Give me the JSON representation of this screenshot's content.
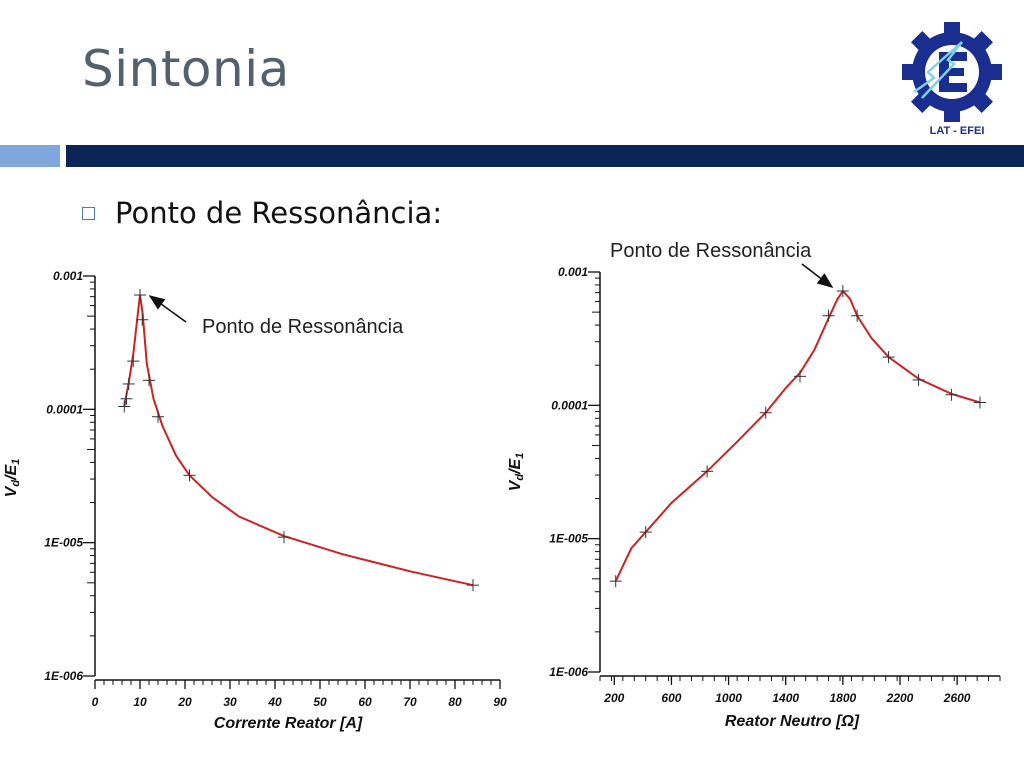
{
  "slide": {
    "title": "Sintonia",
    "bullet": "Ponto de Ressonância:",
    "logo_text": "LAT - EFEI",
    "colors": {
      "title": "#53606e",
      "bar_light": "#7fa6dd",
      "bar_dark": "#0a2556",
      "logo_blue": "#1a2e8f",
      "curve": "#cc2222"
    }
  },
  "chart_data": [
    {
      "type": "line",
      "xlabel": "Corrente Reator [A]",
      "ylabel": "Vd/E1",
      "ylabel_main": "V",
      "ylabel_sub1": "d",
      "ylabel_mid": "/E",
      "ylabel_sub2": "1",
      "yscale": "log",
      "xlim": [
        0,
        90
      ],
      "ylim": [
        1e-06,
        0.001
      ],
      "x_ticks": [
        0,
        10,
        20,
        30,
        40,
        50,
        60,
        70,
        80,
        90
      ],
      "x_tick_labels": [
        "0",
        "10",
        "20",
        "30",
        "40",
        "50",
        "60",
        "70",
        "80",
        "90"
      ],
      "y_ticks": [
        0.001,
        0.0001,
        1e-05,
        1e-06
      ],
      "y_tick_labels": [
        "0.001",
        "0.0001",
        "1E-005",
        "1E-006"
      ],
      "annotation": {
        "text": "Ponto de Ressonância",
        "x": 10,
        "y": 0.00072
      },
      "points": [
        [
          6.5,
          0.000105
        ],
        [
          7.0,
          0.00012
        ],
        [
          7.5,
          0.000155
        ],
        [
          8.5,
          0.00023
        ],
        [
          10.0,
          0.00072
        ],
        [
          10.5,
          0.00047
        ],
        [
          12.0,
          0.000165
        ],
        [
          14.0,
          8.8e-05
        ],
        [
          21.0,
          3.2e-05
        ],
        [
          42.0,
          1.1e-05
        ],
        [
          84.0,
          4.8e-06
        ]
      ],
      "curve": [
        [
          6.5,
          0.000105
        ],
        [
          7.5,
          0.00016
        ],
        [
          8.5,
          0.00026
        ],
        [
          9.5,
          0.00052
        ],
        [
          10.0,
          0.00072
        ],
        [
          10.6,
          0.00052
        ],
        [
          11.5,
          0.00022
        ],
        [
          13.0,
          0.00012
        ],
        [
          15.0,
          7.5e-05
        ],
        [
          18.0,
          4.5e-05
        ],
        [
          21.0,
          3.2e-05
        ],
        [
          26.0,
          2.2e-05
        ],
        [
          32.0,
          1.57e-05
        ],
        [
          42.0,
          1.12e-05
        ],
        [
          55.0,
          8.2e-06
        ],
        [
          70.0,
          6.1e-06
        ],
        [
          84.0,
          4.8e-06
        ]
      ]
    },
    {
      "type": "line",
      "xlabel": "Reator Neutro [Ω]",
      "ylabel": "Vd/E1",
      "ylabel_main": "V",
      "ylabel_sub1": "d",
      "ylabel_mid": "/E",
      "ylabel_sub2": "1",
      "yscale": "log",
      "xlim": [
        100,
        2900
      ],
      "ylim": [
        1e-06,
        0.001
      ],
      "x_ticks": [
        200,
        600,
        1000,
        1400,
        1800,
        2200,
        2600
      ],
      "x_tick_labels": [
        "200",
        "600",
        "1000",
        "1400",
        "1800",
        "2200",
        "2600"
      ],
      "y_ticks": [
        0.001,
        0.0001,
        1e-05,
        1e-06
      ],
      "y_tick_labels": [
        "0.001",
        "0.0001",
        "1E-005",
        "1E-006"
      ],
      "annotation": {
        "text": "Ponto de Ressonância",
        "x": 1800,
        "y": 0.00072
      },
      "points": [
        [
          210,
          4.8e-06
        ],
        [
          420,
          1.12e-05
        ],
        [
          850,
          3.2e-05
        ],
        [
          1260,
          8.8e-05
        ],
        [
          1500,
          0.000165
        ],
        [
          1700,
          0.00047
        ],
        [
          1800,
          0.00072
        ],
        [
          1900,
          0.00047
        ],
        [
          2120,
          0.00023
        ],
        [
          2330,
          0.000155
        ],
        [
          2560,
          0.00012
        ],
        [
          2760,
          0.000105
        ]
      ],
      "curve": [
        [
          210,
          4.8e-06
        ],
        [
          320,
          8.5e-06
        ],
        [
          420,
          1.12e-05
        ],
        [
          600,
          1.85e-05
        ],
        [
          850,
          3.2e-05
        ],
        [
          1050,
          5.2e-05
        ],
        [
          1260,
          8.8e-05
        ],
        [
          1400,
          0.000135
        ],
        [
          1500,
          0.000175
        ],
        [
          1600,
          0.00026
        ],
        [
          1700,
          0.00045
        ],
        [
          1760,
          0.00062
        ],
        [
          1800,
          0.00072
        ],
        [
          1850,
          0.00063
        ],
        [
          1900,
          0.00047
        ],
        [
          2000,
          0.00032
        ],
        [
          2120,
          0.00023
        ],
        [
          2330,
          0.000158
        ],
        [
          2560,
          0.000122
        ],
        [
          2760,
          0.000105
        ]
      ]
    }
  ]
}
